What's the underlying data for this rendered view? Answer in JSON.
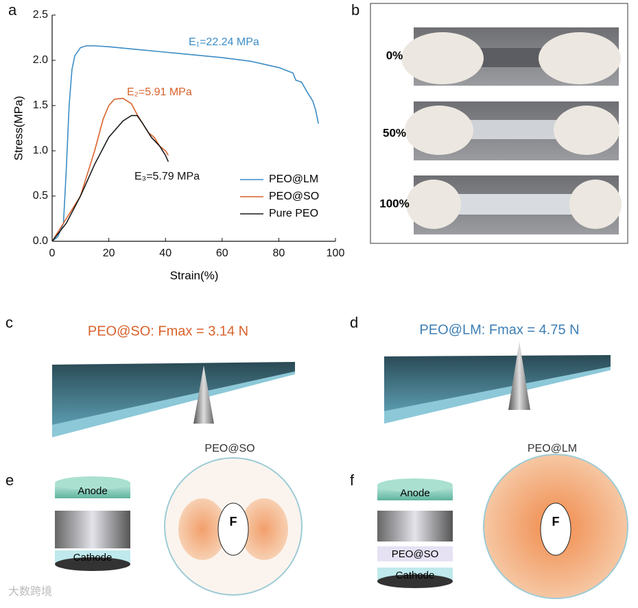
{
  "chart_data": {
    "type": "line",
    "xlabel": "Strain(%)",
    "ylabel": "Stress(MPa)",
    "xlim": [
      0,
      100
    ],
    "xticks": [
      0,
      20,
      40,
      60,
      80,
      100
    ],
    "ylim": [
      0,
      2.5
    ],
    "yticks": [
      {
        "value": 0,
        "label": "0.0"
      },
      0.5,
      {
        "value": 1,
        "label": "1.0"
      },
      1.5,
      {
        "value": 2,
        "label": "2.0"
      },
      2.5
    ],
    "series": [
      {
        "name": "PEO@LM",
        "color": "#3b8cc6",
        "x": [
          0,
          2,
          4,
          5,
          6,
          7,
          8,
          10,
          12,
          15,
          20,
          30,
          40,
          50,
          60,
          70,
          80,
          85,
          86,
          88,
          90,
          92,
          93,
          94
        ],
        "values": [
          0,
          0.05,
          0.2,
          0.8,
          1.5,
          1.9,
          2.05,
          2.14,
          2.16,
          2.16,
          2.15,
          2.12,
          2.09,
          2.06,
          2.03,
          1.99,
          1.92,
          1.86,
          1.78,
          1.76,
          1.65,
          1.55,
          1.45,
          1.3
        ]
      },
      {
        "name": "PEO@SO",
        "color": "#d9622b",
        "x": [
          0,
          5,
          10,
          15,
          18,
          20,
          22,
          25,
          28,
          30,
          32,
          34,
          36,
          38,
          40,
          41
        ],
        "values": [
          0,
          0.25,
          0.5,
          1.0,
          1.35,
          1.5,
          1.57,
          1.58,
          1.52,
          1.4,
          1.3,
          1.2,
          1.15,
          1.05,
          1.0,
          0.95
        ]
      },
      {
        "name": "Pure PEO",
        "color": "#1a1a1a",
        "x": [
          0,
          5,
          10,
          15,
          20,
          25,
          28,
          30,
          32,
          35,
          38,
          40,
          41
        ],
        "values": [
          0,
          0.2,
          0.5,
          0.85,
          1.15,
          1.33,
          1.39,
          1.39,
          1.3,
          1.15,
          1.05,
          0.95,
          0.88
        ]
      }
    ],
    "annotations": [
      "E₁=22.24 MPa",
      "E₂=5.91 MPa",
      "E₃=5.79 MPa"
    ],
    "legend": "lower right"
  },
  "panel_labels": [
    "a",
    "b",
    "c",
    "d",
    "e",
    "f"
  ],
  "panel_b": {
    "labels": [
      "0%",
      "50%",
      "100%"
    ]
  },
  "panel_c": {
    "title": "PEO@SO: Fmax = 3.14 N"
  },
  "panel_d": {
    "title": "PEO@LM: Fmax = 4.75 N"
  },
  "panel_e": {
    "caption": "PEO@SO",
    "anode": "Anode",
    "cathode": "Cathode",
    "force": "F"
  },
  "panel_f": {
    "caption": "PEO@LM",
    "anode": "Anode",
    "separator": "PEO@SO",
    "cathode": "Cathode",
    "force": "F"
  },
  "watermark": "大数跨境"
}
